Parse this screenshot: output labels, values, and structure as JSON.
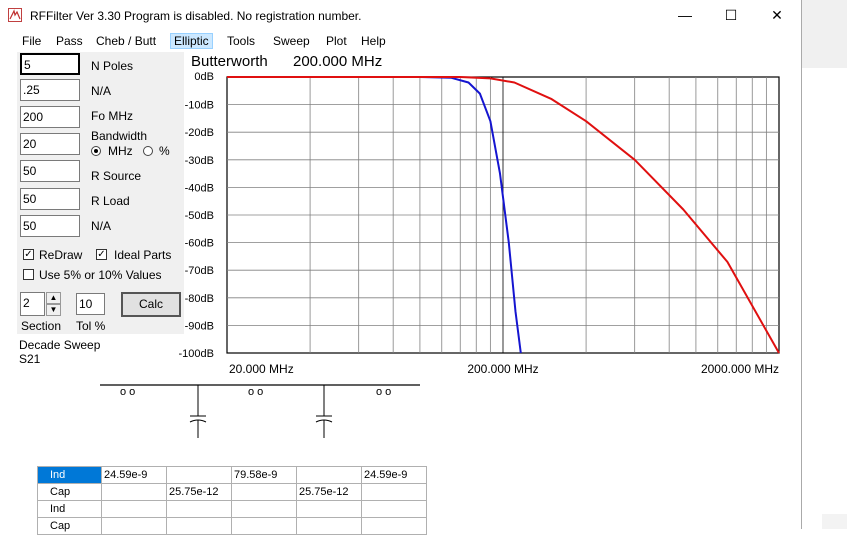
{
  "window": {
    "title": "RFFilter Ver 3.30 Program is disabled. No registration number.",
    "minimize": "—",
    "maximize": "☐",
    "close": "✕"
  },
  "menu": [
    "File",
    "Pass",
    "Cheb / Butt",
    "Elliptic",
    "Tools",
    "Sweep",
    "Plot",
    "Help"
  ],
  "fields": {
    "n_poles": {
      "value": "5",
      "label": "N Poles"
    },
    "na1": {
      "value": ".25",
      "label": "N/A"
    },
    "fo": {
      "value": "200",
      "label": "Fo  MHz"
    },
    "bandwidth": {
      "value": "20",
      "label": "Bandwidth"
    },
    "r_source": {
      "value": "50",
      "label": "R Source"
    },
    "r_load": {
      "value": "50",
      "label": "R Load"
    },
    "na2": {
      "value": "50",
      "label": "N/A"
    }
  },
  "bw_units": {
    "mhz": "MHz",
    "pct": "%",
    "selected": "MHz"
  },
  "options": {
    "redraw": {
      "label": "ReDraw",
      "checked": true
    },
    "ideal": {
      "label": "Ideal Parts",
      "checked": true
    },
    "values5": {
      "label": "Use 5% or 10% Values",
      "checked": false
    }
  },
  "section": {
    "value": "2",
    "label": "Section"
  },
  "tol": {
    "value": "10",
    "label": "Tol %"
  },
  "calc_label": "Calc",
  "sweep_info": {
    "line1": "Decade Sweep",
    "line2": "S21"
  },
  "plot": {
    "filter_type": "Butterworth",
    "center": "200.000 MHz",
    "y_ticks": [
      "0dB",
      "-10dB",
      "-20dB",
      "-30dB",
      "-40dB",
      "-50dB",
      "-60dB",
      "-70dB",
      "-80dB",
      "-90dB",
      "-100dB"
    ],
    "x_ticks": [
      "20.000 MHz",
      "200.000 MHz",
      "2000.000 MHz"
    ],
    "colors": {
      "blue": "#1515d0",
      "red": "#e01010"
    }
  },
  "chart_data": {
    "type": "line",
    "title": "Butterworth  200.000 MHz",
    "xlabel": "",
    "ylabel": "",
    "x_scale": "log",
    "xlim": [
      20,
      2000
    ],
    "ylim": [
      -100,
      0
    ],
    "grid": true,
    "series": [
      {
        "color": "#1515d0",
        "x": [
          20,
          100,
          130,
          150,
          165,
          180,
          195,
          210,
          222,
          232
        ],
        "y": [
          0,
          0,
          -0.3,
          -2,
          -6,
          -16,
          -35,
          -60,
          -85,
          -100
        ]
      },
      {
        "color": "#e01010",
        "x": [
          20,
          140,
          180,
          220,
          300,
          400,
          600,
          900,
          1300,
          2000
        ],
        "y": [
          0,
          0,
          -0.5,
          -2,
          -8,
          -16,
          -30,
          -48,
          -67,
          -100
        ]
      }
    ]
  },
  "schematic": {
    "node_marks": [
      "o o",
      "o o",
      "o o"
    ]
  },
  "table": {
    "rows": [
      {
        "head": "Ind",
        "cells": [
          "24.59e-9",
          "",
          "79.58e-9",
          "",
          "24.59e-9"
        ]
      },
      {
        "head": "Cap",
        "cells": [
          "",
          "25.75e-12",
          "",
          "25.75e-12",
          ""
        ]
      },
      {
        "head": "Ind",
        "cells": [
          "",
          "",
          "",
          "",
          ""
        ]
      },
      {
        "head": "Cap",
        "cells": [
          "",
          "",
          "",
          "",
          ""
        ]
      }
    ]
  }
}
